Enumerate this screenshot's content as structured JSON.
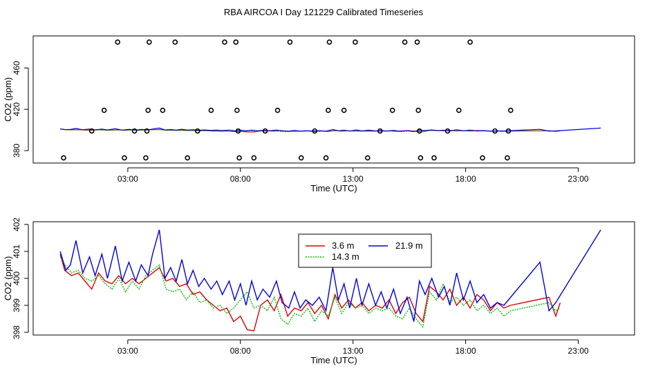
{
  "title": "RBA AIRCOA I  Day 121229  Calibrated Timeseries",
  "chart_data": [
    {
      "type": "scatter",
      "xlabel": "Time (UTC)",
      "ylabel": "CO2 (ppm)",
      "xlim": [
        -1.2,
        25.5
      ],
      "ylim": [
        368,
        491
      ],
      "xticks": [
        3,
        8,
        13,
        18,
        23
      ],
      "xtick_labels": [
        "03:00",
        "08:00",
        "13:00",
        "18:00",
        "23:00"
      ],
      "yticks": [
        380,
        420,
        460
      ],
      "ytick_labels": [
        "380",
        "420",
        "460"
      ],
      "points": [
        {
          "x": 0.15,
          "y": 373
        },
        {
          "x": 1.4,
          "y": 399
        },
        {
          "x": 1.95,
          "y": 419
        },
        {
          "x": 2.55,
          "y": 485
        },
        {
          "x": 2.85,
          "y": 373
        },
        {
          "x": 3.3,
          "y": 399
        },
        {
          "x": 3.8,
          "y": 373
        },
        {
          "x": 3.85,
          "y": 399
        },
        {
          "x": 3.9,
          "y": 419
        },
        {
          "x": 3.95,
          "y": 485
        },
        {
          "x": 4.55,
          "y": 419
        },
        {
          "x": 5.1,
          "y": 485
        },
        {
          "x": 5.65,
          "y": 373
        },
        {
          "x": 6.1,
          "y": 399
        },
        {
          "x": 6.7,
          "y": 419
        },
        {
          "x": 7.3,
          "y": 485
        },
        {
          "x": 7.8,
          "y": 485
        },
        {
          "x": 7.85,
          "y": 419
        },
        {
          "x": 7.9,
          "y": 399
        },
        {
          "x": 7.95,
          "y": 373
        },
        {
          "x": 8.6,
          "y": 373
        },
        {
          "x": 9.1,
          "y": 399
        },
        {
          "x": 9.65,
          "y": 419
        },
        {
          "x": 10.2,
          "y": 485
        },
        {
          "x": 10.7,
          "y": 373
        },
        {
          "x": 11.3,
          "y": 399
        },
        {
          "x": 11.8,
          "y": 373
        },
        {
          "x": 11.9,
          "y": 419
        },
        {
          "x": 11.95,
          "y": 485
        },
        {
          "x": 12.6,
          "y": 419
        },
        {
          "x": 13.1,
          "y": 485
        },
        {
          "x": 13.65,
          "y": 373
        },
        {
          "x": 14.2,
          "y": 399
        },
        {
          "x": 14.75,
          "y": 419
        },
        {
          "x": 15.3,
          "y": 485
        },
        {
          "x": 15.85,
          "y": 485
        },
        {
          "x": 15.9,
          "y": 419
        },
        {
          "x": 15.95,
          "y": 399
        },
        {
          "x": 16.0,
          "y": 373
        },
        {
          "x": 16.6,
          "y": 373
        },
        {
          "x": 17.2,
          "y": 399
        },
        {
          "x": 17.7,
          "y": 419
        },
        {
          "x": 18.2,
          "y": 485
        },
        {
          "x": 18.75,
          "y": 373
        },
        {
          "x": 19.3,
          "y": 399
        },
        {
          "x": 19.85,
          "y": 373
        },
        {
          "x": 19.9,
          "y": 399
        },
        {
          "x": 20.0,
          "y": 419
        }
      ],
      "lines_level": 400
    },
    {
      "type": "line",
      "xlabel": "Time (UTC)",
      "ylabel": "CO2 (ppm)",
      "xlim": [
        -1.2,
        25.5
      ],
      "ylim": [
        397.9,
        402.1
      ],
      "xticks": [
        3,
        8,
        13,
        18,
        23
      ],
      "xtick_labels": [
        "03:00",
        "08:00",
        "13:00",
        "18:00",
        "23:00"
      ],
      "yticks": [
        398,
        399,
        400,
        401,
        402
      ],
      "ytick_labels": [
        "398",
        "399",
        "400",
        "401",
        "402"
      ],
      "legend": {
        "position": "top-center"
      },
      "series": [
        {
          "name": "3.6 m",
          "color": "#dd0000",
          "dash": "",
          "x": [
            0,
            0.2,
            0.5,
            0.8,
            1.1,
            1.4,
            1.7,
            2.0,
            2.3,
            2.6,
            2.9,
            3.2,
            3.5,
            3.8,
            4.1,
            4.4,
            4.7,
            5.0,
            5.3,
            5.6,
            5.9,
            6.2,
            6.5,
            6.8,
            7.1,
            7.4,
            7.7,
            8.0,
            8.3,
            8.6,
            8.9,
            9.2,
            9.5,
            9.8,
            10.1,
            10.4,
            10.7,
            11.0,
            11.3,
            11.6,
            11.9,
            12.2,
            12.5,
            12.8,
            13.1,
            13.4,
            13.7,
            14.0,
            14.3,
            14.6,
            14.9,
            15.2,
            15.5,
            15.8,
            16.1,
            16.4,
            16.7,
            17.0,
            17.3,
            17.6,
            17.9,
            18.2,
            18.5,
            18.8,
            19.1,
            19.4,
            19.7,
            20.0,
            21.7,
            22.0,
            22.2
          ],
          "y": [
            400.9,
            400.3,
            400.1,
            400.2,
            399.9,
            399.6,
            400.2,
            399.9,
            399.8,
            400.1,
            399.8,
            400.0,
            399.8,
            400.0,
            400.2,
            400.4,
            399.9,
            400.0,
            399.7,
            399.8,
            399.4,
            399.5,
            399.2,
            399.0,
            398.8,
            398.9,
            398.4,
            398.6,
            398.1,
            398.05,
            399.0,
            399.2,
            398.8,
            399.4,
            398.6,
            398.9,
            398.8,
            399.1,
            398.7,
            399.0,
            398.5,
            399.4,
            398.9,
            399.2,
            398.9,
            399.1,
            398.8,
            399.0,
            398.9,
            399.2,
            398.7,
            399.1,
            399.3,
            398.7,
            398.4,
            399.7,
            399.5,
            399.2,
            399.6,
            399.0,
            399.3,
            398.9,
            399.4,
            399.2,
            398.8,
            399.1,
            398.9,
            399.0,
            399.3,
            398.6,
            399.1
          ]
        },
        {
          "name": "14.3 m",
          "color": "#00bb00",
          "dash": "2 1.5",
          "x": [
            0,
            0.2,
            0.5,
            0.8,
            1.1,
            1.4,
            1.7,
            2.0,
            2.3,
            2.6,
            2.9,
            3.2,
            3.5,
            3.8,
            4.1,
            4.4,
            4.7,
            5.0,
            5.3,
            5.6,
            5.9,
            6.2,
            6.5,
            6.8,
            7.1,
            7.4,
            7.7,
            8.0,
            8.3,
            8.6,
            8.9,
            9.2,
            9.5,
            9.8,
            10.1,
            10.4,
            10.7,
            11.0,
            11.3,
            11.6,
            11.9,
            12.2,
            12.5,
            12.8,
            13.1,
            13.4,
            13.7,
            14.0,
            14.3,
            14.6,
            14.9,
            15.2,
            15.5,
            15.8,
            16.1,
            16.4,
            16.7,
            17.0,
            17.3,
            17.6,
            17.9,
            18.2,
            18.5,
            18.8,
            19.1,
            19.4,
            19.7,
            20.0,
            21.7,
            22.0,
            22.2
          ],
          "y": [
            400.8,
            400.5,
            400.2,
            400.3,
            400.0,
            399.9,
            400.1,
            399.8,
            399.6,
            400.0,
            399.5,
            399.9,
            399.6,
            400.1,
            400.3,
            400.5,
            399.6,
            399.5,
            399.6,
            399.2,
            399.5,
            399.1,
            399.2,
            398.9,
            399.0,
            398.7,
            398.9,
            399.2,
            399.5,
            398.9,
            399.0,
            398.8,
            399.3,
            398.5,
            398.3,
            398.7,
            398.6,
            398.9,
            398.4,
            398.8,
            398.6,
            399.3,
            398.7,
            399.1,
            398.9,
            399.0,
            398.7,
            398.9,
            398.8,
            398.9,
            398.6,
            398.5,
            398.9,
            398.5,
            398.2,
            399.5,
            399.2,
            399.8,
            399.1,
            399.3,
            399.0,
            399.2,
            398.8,
            399.0,
            398.7,
            398.9,
            398.6,
            398.8,
            399.1,
            398.8,
            398.9
          ]
        },
        {
          "name": "21.9 m",
          "color": "#0000dd",
          "dash": "",
          "x": [
            0,
            0.25,
            0.45,
            0.7,
            1.0,
            1.3,
            1.55,
            1.85,
            2.1,
            2.45,
            2.75,
            3.05,
            3.35,
            3.6,
            3.9,
            4.1,
            4.4,
            4.65,
            4.9,
            5.15,
            5.4,
            5.65,
            5.9,
            6.15,
            6.4,
            6.7,
            6.95,
            7.2,
            7.5,
            7.75,
            8.0,
            8.25,
            8.5,
            8.75,
            9.0,
            9.3,
            9.6,
            9.85,
            10.15,
            10.4,
            10.65,
            10.9,
            11.2,
            11.5,
            11.8,
            12.1,
            12.35,
            12.6,
            12.85,
            13.15,
            13.4,
            13.7,
            14.0,
            14.25,
            14.5,
            14.8,
            15.1,
            15.4,
            15.7,
            15.95,
            16.2,
            16.5,
            16.8,
            17.05,
            17.3,
            17.6,
            17.9,
            18.2,
            18.5,
            18.8,
            19.1,
            19.4,
            19.7,
            21.3,
            21.7,
            22.0,
            24.0
          ],
          "y": [
            401.0,
            400.3,
            400.5,
            401.4,
            400.2,
            400.8,
            400.1,
            400.9,
            400.0,
            401.2,
            399.9,
            400.6,
            399.9,
            400.5,
            400.1,
            400.9,
            401.8,
            400.0,
            400.4,
            399.9,
            400.7,
            399.8,
            400.3,
            399.7,
            400.0,
            399.6,
            399.9,
            399.4,
            399.9,
            399.2,
            399.8,
            399.0,
            399.9,
            399.2,
            399.6,
            399.3,
            399.9,
            399.1,
            398.9,
            399.5,
            398.9,
            399.2,
            399.0,
            399.3,
            398.8,
            400.4,
            399.2,
            399.8,
            398.9,
            400.0,
            399.0,
            399.8,
            399.0,
            399.5,
            398.9,
            399.6,
            398.7,
            399.3,
            398.4,
            399.9,
            399.4,
            400.0,
            399.3,
            399.7,
            399.0,
            400.2,
            399.2,
            399.9,
            399.1,
            399.4,
            398.9,
            399.1,
            399.0,
            400.6,
            398.8,
            399.1,
            401.8
          ]
        }
      ]
    }
  ]
}
